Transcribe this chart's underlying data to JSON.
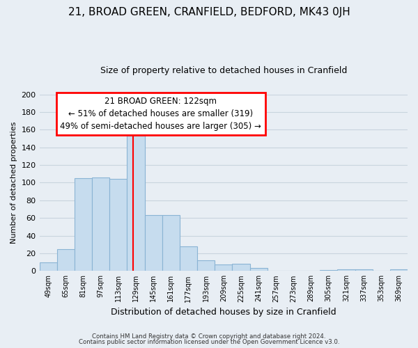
{
  "title": "21, BROAD GREEN, CRANFIELD, BEDFORD, MK43 0JH",
  "subtitle": "Size of property relative to detached houses in Cranfield",
  "xlabel": "Distribution of detached houses by size in Cranfield",
  "ylabel": "Number of detached properties",
  "bin_labels": [
    "49sqm",
    "65sqm",
    "81sqm",
    "97sqm",
    "113sqm",
    "129sqm",
    "145sqm",
    "161sqm",
    "177sqm",
    "193sqm",
    "209sqm",
    "225sqm",
    "241sqm",
    "257sqm",
    "273sqm",
    "289sqm",
    "305sqm",
    "321sqm",
    "337sqm",
    "353sqm",
    "369sqm"
  ],
  "bar_heights": [
    10,
    25,
    105,
    106,
    104,
    153,
    63,
    63,
    28,
    12,
    7,
    8,
    3,
    0,
    0,
    0,
    1,
    2,
    2,
    0,
    2
  ],
  "bar_color": "#c6dcee",
  "bar_edge_color": "#8ab4d4",
  "property_line_bin_index": 4.85,
  "ylim": [
    0,
    200
  ],
  "yticks": [
    0,
    20,
    40,
    60,
    80,
    100,
    120,
    140,
    160,
    180,
    200
  ],
  "annotation_title": "21 BROAD GREEN: 122sqm",
  "annotation_line1": "← 51% of detached houses are smaller (319)",
  "annotation_line2": "49% of semi-detached houses are larger (305) →",
  "footnote1": "Contains HM Land Registry data © Crown copyright and database right 2024.",
  "footnote2": "Contains public sector information licensed under the Open Government Licence v3.0.",
  "background_color": "#e8eef4",
  "plot_bg_color": "#e8eef4",
  "grid_color": "#c8d4de"
}
